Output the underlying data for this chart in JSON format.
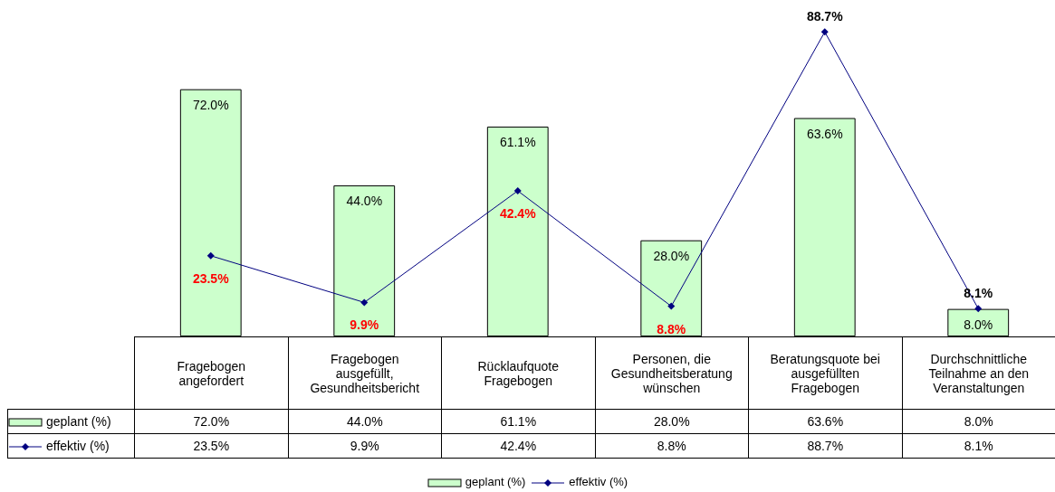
{
  "chart_data": {
    "type": "bar",
    "categories": [
      "Fragebogen angefordert",
      "Fragebogen ausgefüllt, Gesundheitsbericht",
      "Rücklaufquote Fragebogen",
      "Personen, die Gesundheitsberatung wünschen",
      "Beratungsquote bei ausgefüllten Fragebogen",
      "Durchschnittliche Teilnahme an den Veranstaltungen"
    ],
    "series": [
      {
        "name": "geplant (%)",
        "color": "#ccffcc",
        "values": [
          72.0,
          44.0,
          61.1,
          28.0,
          63.6,
          8.0
        ],
        "value_labels": [
          "72.0%",
          "44.0%",
          "61.1%",
          "28.0%",
          "63.6%",
          "8.0%"
        ]
      },
      {
        "name": "effektiv (%)",
        "type": "line",
        "color": "#000080",
        "marker": "diamond",
        "values": [
          23.5,
          9.9,
          42.4,
          8.8,
          88.7,
          8.1
        ],
        "value_labels": [
          "23.5%",
          "9.9%",
          "42.4%",
          "8.8%",
          "88.7%",
          "8.1%"
        ]
      }
    ],
    "legend": "bottom"
  }
}
